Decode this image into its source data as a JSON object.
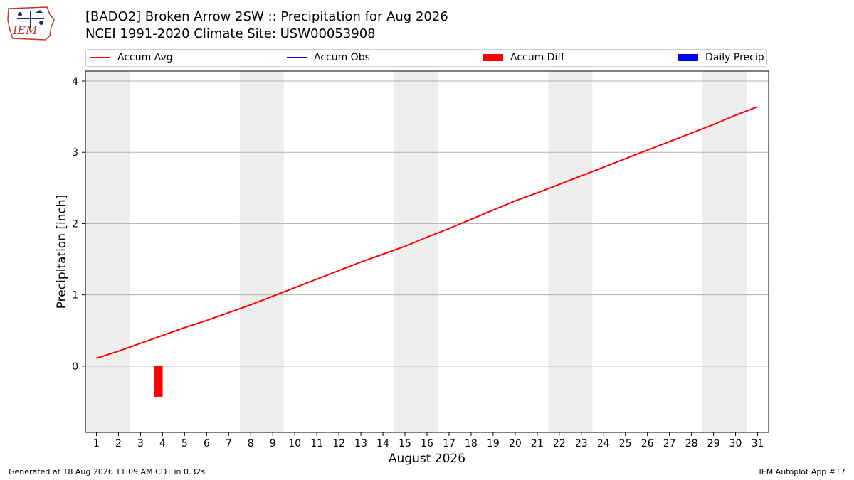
{
  "header": {
    "logo_text": "IEM",
    "title_line1": "[BADO2] Broken Arrow 2SW :: Precipitation for Aug 2026",
    "title_line2": "NCEI 1991-2020 Climate Site: USW00053908"
  },
  "legend": {
    "items": [
      {
        "label": "Accum Avg",
        "color": "#ff0000",
        "kind": "line"
      },
      {
        "label": "Accum Obs",
        "color": "#0000ff",
        "kind": "line"
      },
      {
        "label": "Accum Diff",
        "color": "#ff0000",
        "kind": "box"
      },
      {
        "label": "Daily Precip",
        "color": "#0000ff",
        "kind": "box"
      }
    ]
  },
  "footer": {
    "generated": "Generated at 18 Aug 2026 11:09 AM CDT in 0.32s",
    "app": "IEM Autoplot App #17"
  },
  "chart_data": {
    "type": "line",
    "xlabel": "August 2026",
    "ylabel": "Precipitation [inch]",
    "xlim": [
      0.5,
      31.5
    ],
    "ylim": [
      -0.93,
      4.14
    ],
    "yticks": [
      0,
      1,
      2,
      3,
      4
    ],
    "x": [
      1,
      2,
      3,
      4,
      5,
      6,
      7,
      8,
      9,
      10,
      11,
      12,
      13,
      14,
      15,
      16,
      17,
      18,
      19,
      20,
      21,
      22,
      23,
      24,
      25,
      26,
      27,
      28,
      29,
      30,
      31
    ],
    "grid": "horizontal",
    "weekend_shading": [
      [
        1,
        2
      ],
      [
        8,
        9
      ],
      [
        15,
        16
      ],
      [
        22,
        23
      ],
      [
        29,
        30
      ]
    ],
    "weekend_color": "#eeeeee",
    "series": [
      {
        "name": "Accum Avg",
        "type": "line",
        "color": "#ff0000",
        "values": [
          0.11,
          0.21,
          0.32,
          0.43,
          0.54,
          0.64,
          0.75,
          0.86,
          0.98,
          1.1,
          1.22,
          1.34,
          1.46,
          1.57,
          1.68,
          1.81,
          1.93,
          2.06,
          2.19,
          2.32,
          2.43,
          2.55,
          2.67,
          2.79,
          2.91,
          3.03,
          3.15,
          3.27,
          3.39,
          3.52,
          3.64
        ]
      },
      {
        "name": "Accum Diff",
        "type": "bar",
        "color": "#ff0000",
        "x": [
          4
        ],
        "values": [
          -0.43
        ]
      }
    ]
  }
}
